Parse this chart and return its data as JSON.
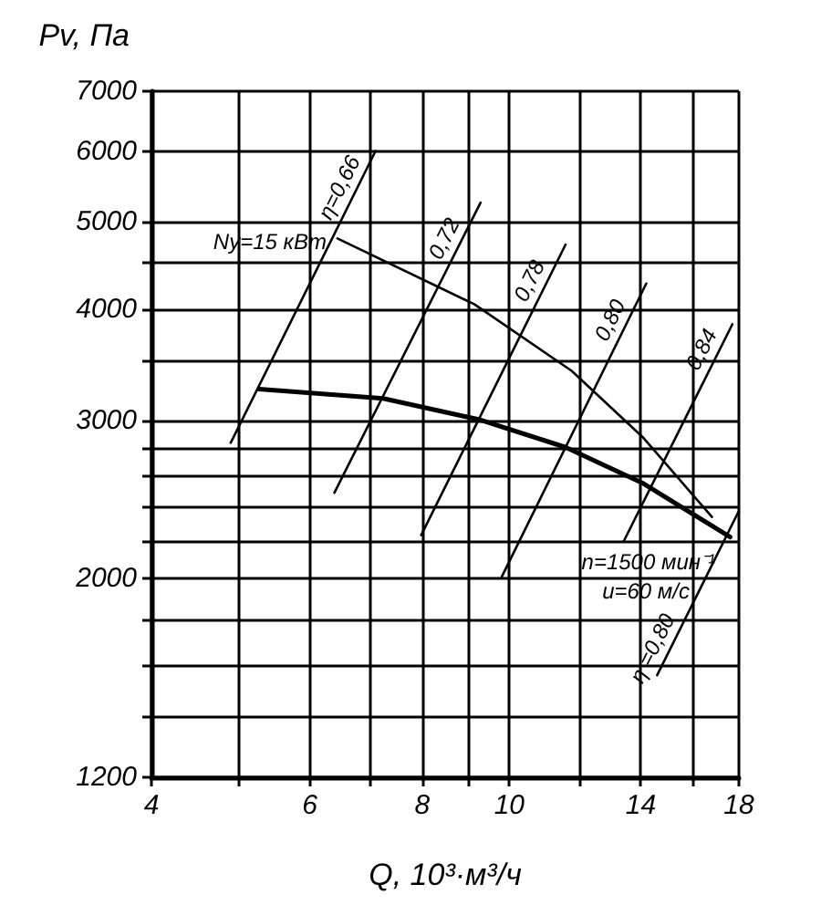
{
  "chart_data": {
    "type": "line",
    "xlabel": "Q, 10³·м³/ч",
    "ylabel": "Pv, Па",
    "log": "xy",
    "grid": true,
    "line_style": "solid",
    "marker": "none",
    "xlim": [
      4,
      18
    ],
    "ylim": [
      1200,
      7000
    ],
    "xticks": [
      4,
      {
        "value": 5,
        "label": null
      },
      6,
      {
        "value": 7,
        "label": null
      },
      8,
      {
        "value": 9,
        "label": null
      },
      10,
      {
        "value": 12,
        "label": null
      },
      14,
      {
        "value": 16,
        "label": null
      },
      18
    ],
    "yticks": [
      1200,
      {
        "value": 1400,
        "label": null
      },
      {
        "value": 1600,
        "label": null
      },
      {
        "value": 1800,
        "label": null
      },
      2000,
      {
        "value": 2200,
        "label": null
      },
      {
        "value": 2400,
        "label": null
      },
      {
        "value": 2600,
        "label": null
      },
      {
        "value": 2800,
        "label": null
      },
      3000,
      {
        "value": 3500,
        "label": null
      },
      4000,
      {
        "value": 4500,
        "label": null
      },
      5000,
      6000,
      7000
    ],
    "series": [
      {
        "color": "#000000",
        "x": [
          5.27,
          7.24,
          9.29,
          11.55,
          14.1,
          17.6
        ],
        "values": [
          3255,
          3178,
          3007,
          2803,
          2553,
          2225
        ]
      },
      {
        "name": "Ny=15 кВт",
        "color": "#000000",
        "x": [
          6.44,
          9.14,
          11.73,
          14.1,
          16.8
        ],
        "values": [
          4794,
          4049,
          3411,
          2871,
          2343
        ]
      },
      {
        "name": "η=0,66",
        "color": "#000000",
        "x": [
          4.9,
          7.1
        ],
        "values": [
          2835,
          6003
        ]
      },
      {
        "name": "0,72",
        "color": "#000000",
        "x": [
          6.39,
          9.29
        ],
        "values": [
          2494,
          5257
        ]
      },
      {
        "name": "0,78",
        "color": "#000000",
        "x": [
          7.98,
          11.55
        ],
        "values": [
          2236,
          4720
        ]
      },
      {
        "name": "0,80",
        "color": "#000000",
        "x": [
          9.81,
          14.2
        ],
        "values": [
          2010,
          4270
        ]
      },
      {
        "name": "0,84",
        "color": "#000000",
        "x": [
          13.4,
          17.7
        ],
        "values": [
          2200,
          3845
        ]
      },
      {
        "name": "η =0,80",
        "color": "#000000",
        "x": [
          14.6,
          18
        ],
        "values": [
          1560,
          2380
        ]
      }
    ],
    "annotations": [
      "n=1500 мин⁻¹",
      "u=60 м/с"
    ]
  }
}
